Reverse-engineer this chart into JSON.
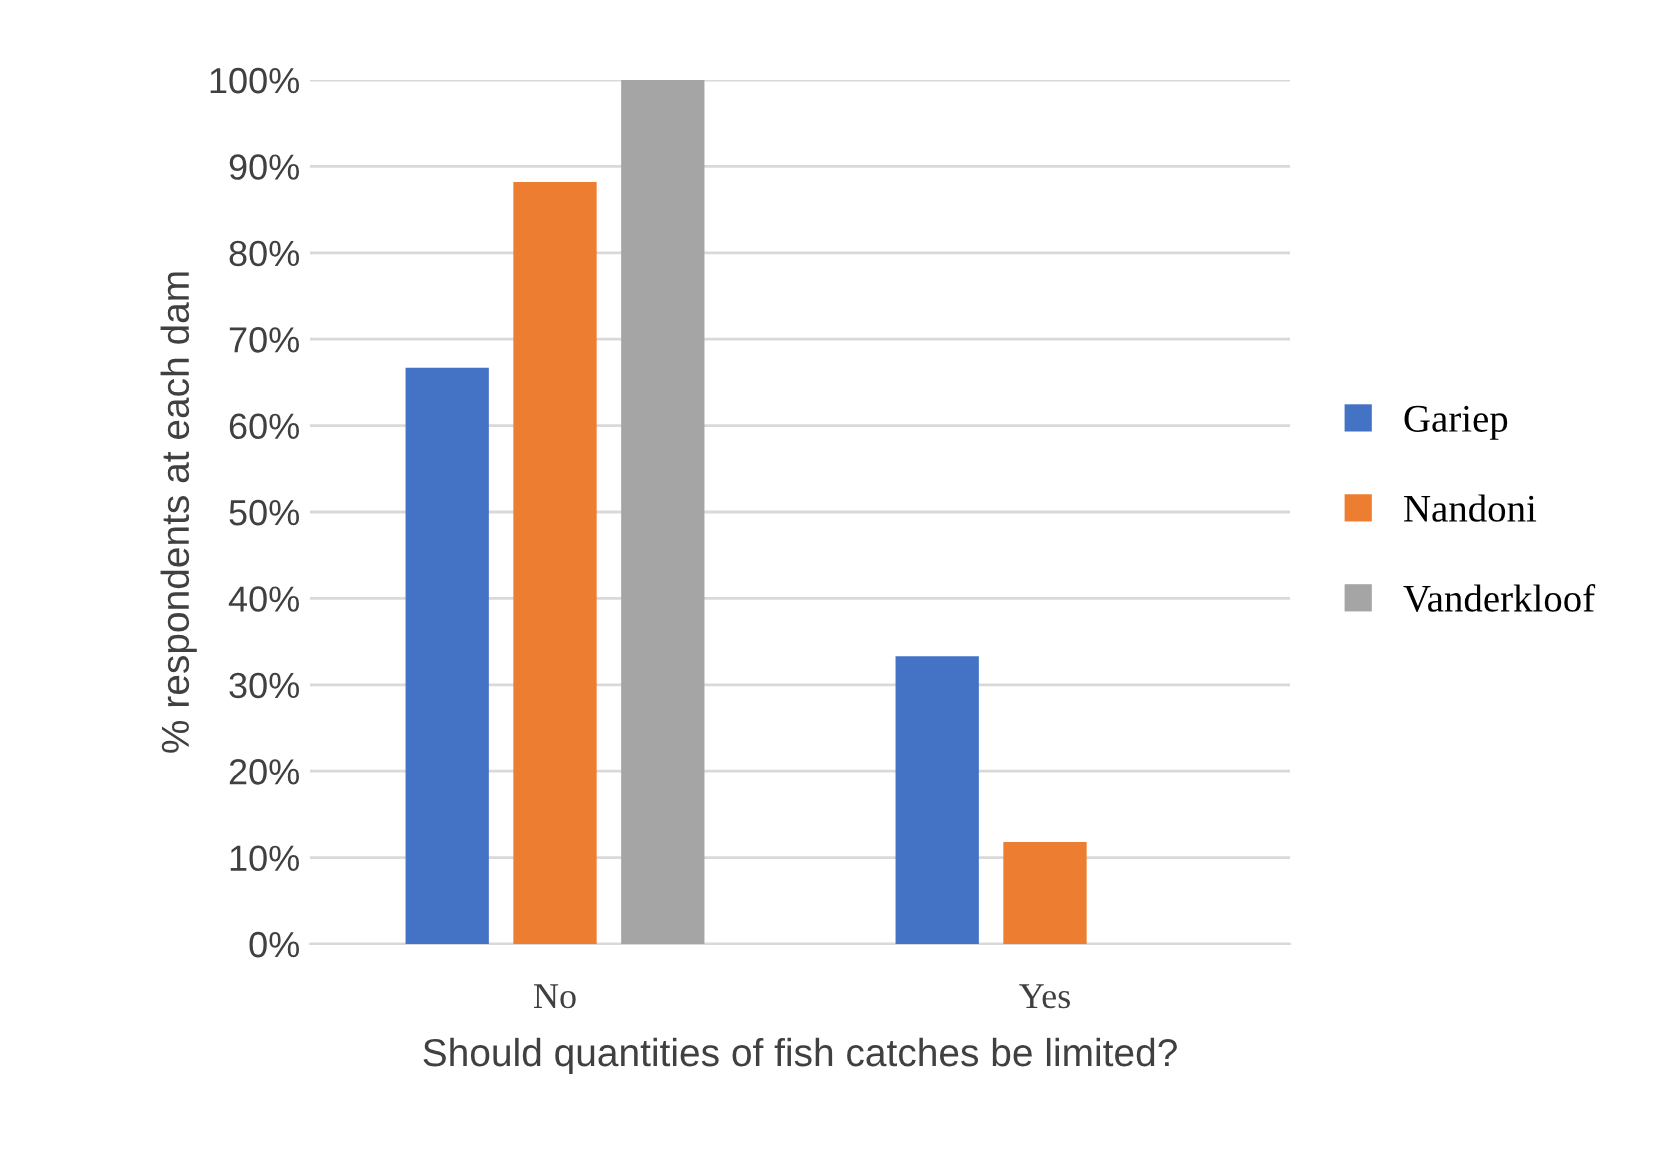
{
  "chart_data": {
    "type": "bar",
    "xlabel": "Should quantities of fish catches be limited?",
    "ylabel": "% respondents at each dam",
    "categories": [
      "No",
      "Yes"
    ],
    "series": [
      {
        "name": "Gariep",
        "color": "#4472c4",
        "values": [
          66.7,
          33.3
        ]
      },
      {
        "name": "Nandoni",
        "color": "#ed7d31",
        "values": [
          88.2,
          11.8
        ]
      },
      {
        "name": "Vanderkloof",
        "color": "#a5a5a5",
        "values": [
          100,
          0
        ]
      }
    ],
    "ylim": [
      0,
      100
    ],
    "yticks": [
      {
        "value": 0,
        "label": "0%"
      },
      {
        "value": 10,
        "label": "10%"
      },
      {
        "value": 20,
        "label": "20%"
      },
      {
        "value": 30,
        "label": "30%"
      },
      {
        "value": 40,
        "label": "40%"
      },
      {
        "value": 50,
        "label": "50%"
      },
      {
        "value": 60,
        "label": "60%"
      },
      {
        "value": 70,
        "label": "70%"
      },
      {
        "value": 80,
        "label": "80%"
      },
      {
        "value": 90,
        "label": "90%"
      },
      {
        "value": 100,
        "label": "100%"
      }
    ],
    "grid": "y",
    "legend": "right"
  }
}
